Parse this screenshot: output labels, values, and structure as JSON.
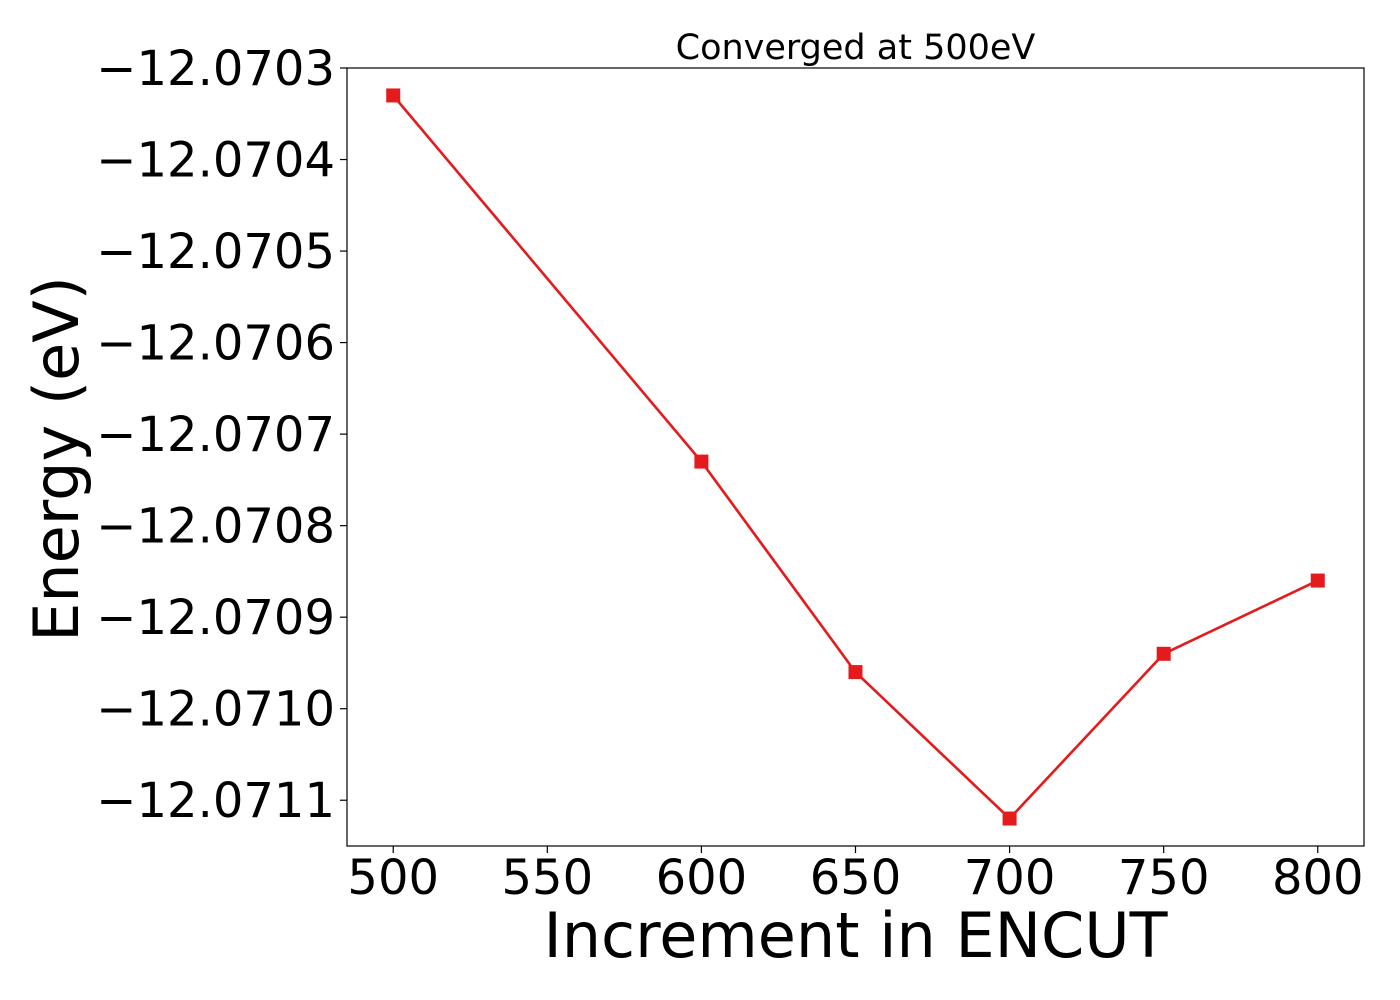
{
  "chart_data": {
    "type": "line",
    "title": "Converged at 500eV",
    "xlabel": "Increment in ENCUT",
    "ylabel": "Energy (eV)",
    "x": [
      500,
      600,
      650,
      700,
      750,
      800
    ],
    "series": [
      {
        "values": [
          -12.07033,
          -12.07073,
          -12.07096,
          -12.07112,
          -12.07094,
          -12.07086
        ],
        "color": "#e41a1c",
        "marker": "square"
      }
    ],
    "xlim": [
      485,
      815
    ],
    "ylim": [
      -12.07115,
      -12.0703
    ],
    "xticks": [
      500,
      550,
      600,
      650,
      700,
      750,
      800
    ],
    "xtick_labels": [
      "500",
      "550",
      "600",
      "650",
      "700",
      "750",
      "800"
    ],
    "yticks": [
      -12.0703,
      -12.0704,
      -12.0705,
      -12.0706,
      -12.0707,
      -12.0708,
      -12.0709,
      -12.071,
      -12.0711
    ],
    "ytick_labels": [
      "−12.0703",
      "−12.0704",
      "−12.0705",
      "−12.0706",
      "−12.0707",
      "−12.0708",
      "−12.0709",
      "−12.0710",
      "−12.0711"
    ],
    "grid": false,
    "legend": false
  }
}
